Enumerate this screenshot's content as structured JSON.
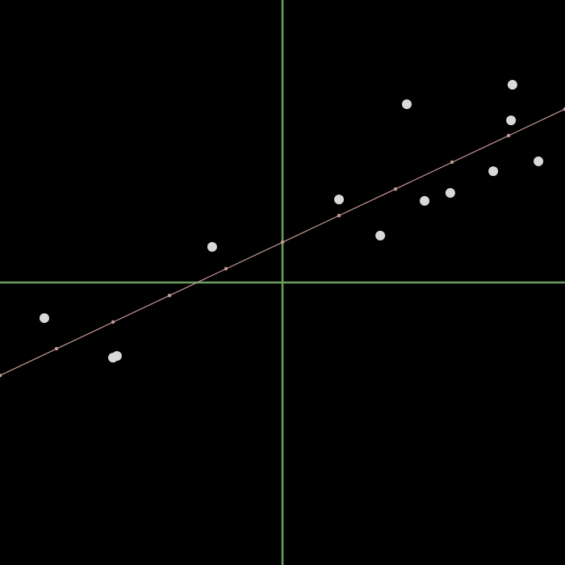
{
  "chart_data": {
    "type": "scatter",
    "title": "",
    "xlabel": "",
    "ylabel": "",
    "xlim": [
      -1,
      1
    ],
    "ylim": [
      -1,
      1
    ],
    "grid": false,
    "axes_through_origin": true,
    "series": [
      {
        "kind": "points",
        "points": [
          {
            "x": -0.843,
            "y": -0.126
          },
          {
            "x": -0.6,
            "y": -0.266
          },
          {
            "x": -0.586,
            "y": -0.26
          },
          {
            "x": -0.249,
            "y": 0.126
          },
          {
            "x": 0.2,
            "y": 0.294
          },
          {
            "x": 0.346,
            "y": 0.166
          },
          {
            "x": 0.44,
            "y": 0.631
          },
          {
            "x": 0.503,
            "y": 0.289
          },
          {
            "x": 0.594,
            "y": 0.317
          },
          {
            "x": 0.746,
            "y": 0.394
          },
          {
            "x": 0.809,
            "y": 0.574
          },
          {
            "x": 0.814,
            "y": 0.7
          },
          {
            "x": 0.906,
            "y": 0.429
          }
        ]
      },
      {
        "kind": "fit-line",
        "x": [
          -1,
          -0.8,
          -0.6,
          -0.4,
          -0.2,
          0,
          0.2,
          0.4,
          0.6,
          0.8,
          1
        ],
        "y": [
          -0.329,
          -0.234,
          -0.14,
          -0.046,
          0.049,
          0.143,
          0.237,
          0.331,
          0.426,
          0.52,
          0.614
        ]
      }
    ]
  },
  "colors": {
    "background": "#000000",
    "axis": "#6b9e5e",
    "points": "#d9d9d9",
    "fit_line": "#c49a96"
  }
}
